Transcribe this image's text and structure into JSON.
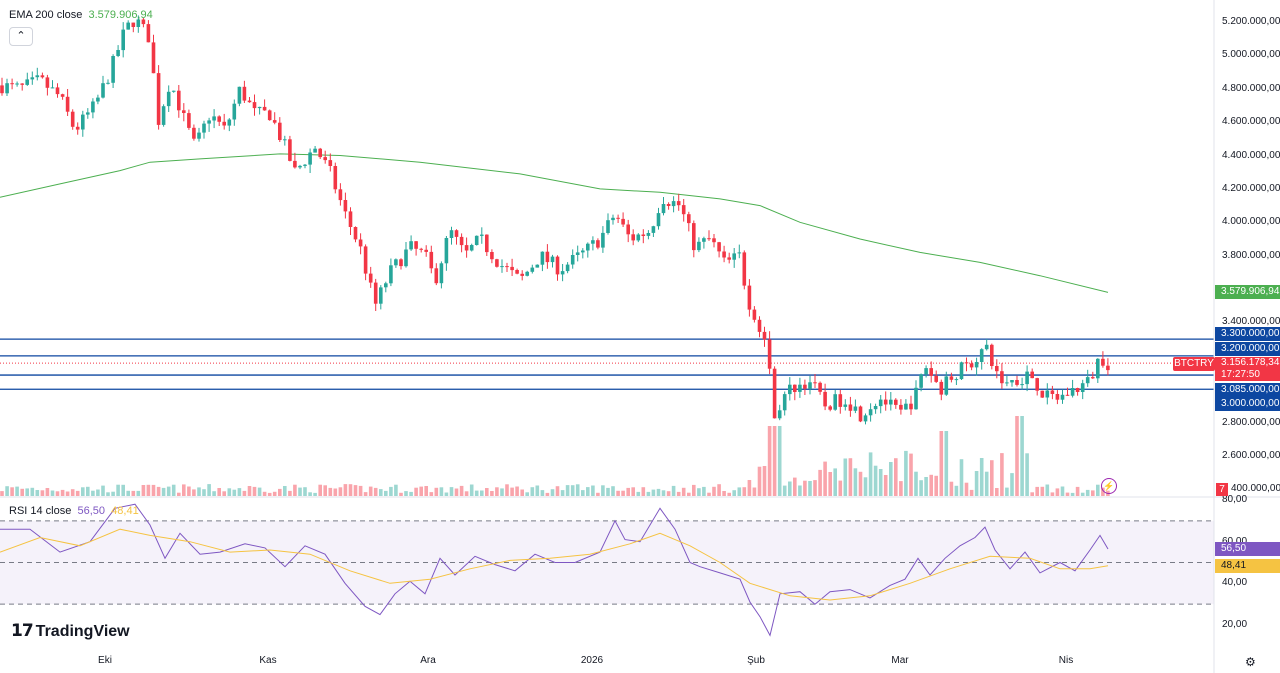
{
  "legend": {
    "ema_label": "EMA 200 close",
    "ema_value": "3.579.906,94",
    "rsi_label": "RSI 14 close",
    "rsi_value": "56,50",
    "rsi_ma_value": "48,41"
  },
  "symbol": "BTCTRY",
  "price_axis": [
    "5.200.000,00",
    "5.000.000,00",
    "4.800.000,00",
    "4.600.000,00",
    "4.400.000,00",
    "4.200.000,00",
    "4.000.000,00",
    "3.800.000,00",
    "3.400.000,00",
    "2.800.000,00",
    "2.600.000,00"
  ],
  "price_tags": {
    "ema": "3.579.906,94",
    "level_3300": "3.300.000,00",
    "level_3200": "3.200.000,00",
    "last_price": "3.156.178,34",
    "countdown": "17:27:50",
    "level_3085": "3.085.000,00",
    "level_3000": "3.000.000,00",
    "vol_tag": "7",
    "vol_tag_rest": "400.000,00"
  },
  "rsi_axis": [
    "80,00",
    "60,00",
    "40,00",
    "20,00"
  ],
  "rsi_tags": {
    "rsi": "56,50",
    "rsi_ma": "48,41"
  },
  "time_axis": [
    "Eki",
    "Kas",
    "Ara",
    "2026",
    "Şub",
    "Mar",
    "Nis"
  ],
  "branding": {
    "name": "TradingView"
  },
  "colors": {
    "up": "#26a69a",
    "down": "#f23645",
    "ema": "#4caf50",
    "rsi": "#7e57c2",
    "rsi_ma": "#f5c342",
    "level": "#0d47a1"
  },
  "chart_data": {
    "type": "candlestick",
    "series_name": "BTCTRY",
    "ylim": [
      2400000,
      5300000
    ],
    "horizontal_levels": [
      3300000,
      3200000,
      3085000,
      3000000
    ],
    "last_price": 3156178.34,
    "ema200_last": 3579906.94,
    "ema200": [
      [
        0,
        4150000
      ],
      [
        60,
        4230000
      ],
      [
        120,
        4310000
      ],
      [
        150,
        4360000
      ],
      [
        200,
        4380000
      ],
      [
        280,
        4410000
      ],
      [
        340,
        4400000
      ],
      [
        420,
        4360000
      ],
      [
        520,
        4290000
      ],
      [
        600,
        4200000
      ],
      [
        660,
        4180000
      ],
      [
        720,
        4140000
      ],
      [
        760,
        4100000
      ],
      [
        800,
        4000000
      ],
      [
        860,
        3900000
      ],
      [
        920,
        3820000
      ],
      [
        980,
        3760000
      ],
      [
        1040,
        3680000
      ],
      [
        1108,
        3579906
      ]
    ],
    "closes_anchor": [
      [
        0,
        4820000
      ],
      [
        20,
        4800000
      ],
      [
        40,
        4850000
      ],
      [
        60,
        4750000
      ],
      [
        75,
        4550000
      ],
      [
        95,
        4700000
      ],
      [
        110,
        4900000
      ],
      [
        125,
        5150000
      ],
      [
        135,
        5220000
      ],
      [
        150,
        5100000
      ],
      [
        158,
        4600000
      ],
      [
        170,
        4850000
      ],
      [
        185,
        4600000
      ],
      [
        195,
        4450000
      ],
      [
        210,
        4650000
      ],
      [
        225,
        4550000
      ],
      [
        240,
        4800000
      ],
      [
        255,
        4650000
      ],
      [
        270,
        4650000
      ],
      [
        285,
        4450000
      ],
      [
        295,
        4300000
      ],
      [
        315,
        4450000
      ],
      [
        330,
        4300000
      ],
      [
        345,
        4050000
      ],
      [
        360,
        3850000
      ],
      [
        375,
        3500000
      ],
      [
        390,
        3700000
      ],
      [
        410,
        3850000
      ],
      [
        425,
        3800000
      ],
      [
        435,
        3650000
      ],
      [
        450,
        3950000
      ],
      [
        465,
        3800000
      ],
      [
        480,
        3900000
      ],
      [
        500,
        3750000
      ],
      [
        520,
        3650000
      ],
      [
        540,
        3800000
      ],
      [
        560,
        3720000
      ],
      [
        580,
        3800000
      ],
      [
        600,
        3900000
      ],
      [
        615,
        4050000
      ],
      [
        630,
        3900000
      ],
      [
        650,
        3950000
      ],
      [
        662,
        4150000
      ],
      [
        680,
        4100000
      ],
      [
        695,
        3850000
      ],
      [
        710,
        3900000
      ],
      [
        725,
        3750000
      ],
      [
        740,
        3800000
      ],
      [
        750,
        3450000
      ],
      [
        765,
        3300000
      ],
      [
        775,
        2850000
      ],
      [
        790,
        3000000
      ],
      [
        810,
        3050000
      ],
      [
        825,
        2900000
      ],
      [
        845,
        2950000
      ],
      [
        860,
        2850000
      ],
      [
        880,
        2950000
      ],
      [
        900,
        2850000
      ],
      [
        915,
        2950000
      ],
      [
        925,
        3150000
      ],
      [
        940,
        3000000
      ],
      [
        955,
        3100000
      ],
      [
        970,
        3150000
      ],
      [
        985,
        3250000
      ],
      [
        1000,
        3050000
      ],
      [
        1015,
        3050000
      ],
      [
        1030,
        3100000
      ],
      [
        1045,
        2950000
      ],
      [
        1060,
        2950000
      ],
      [
        1075,
        3000000
      ],
      [
        1090,
        3050000
      ],
      [
        1100,
        3200000
      ],
      [
        1108,
        3156178
      ]
    ],
    "rsi": [
      [
        0,
        66
      ],
      [
        30,
        66
      ],
      [
        60,
        55
      ],
      [
        90,
        60
      ],
      [
        115,
        76
      ],
      [
        135,
        78
      ],
      [
        150,
        68
      ],
      [
        165,
        52
      ],
      [
        180,
        64
      ],
      [
        200,
        54
      ],
      [
        220,
        55
      ],
      [
        245,
        59
      ],
      [
        265,
        57
      ],
      [
        285,
        48
      ],
      [
        305,
        58
      ],
      [
        325,
        54
      ],
      [
        345,
        40
      ],
      [
        365,
        29
      ],
      [
        380,
        25
      ],
      [
        395,
        35
      ],
      [
        410,
        41
      ],
      [
        425,
        35
      ],
      [
        440,
        52
      ],
      [
        455,
        44
      ],
      [
        475,
        53
      ],
      [
        495,
        49
      ],
      [
        515,
        46
      ],
      [
        535,
        54
      ],
      [
        555,
        50
      ],
      [
        575,
        50
      ],
      [
        600,
        55
      ],
      [
        615,
        70
      ],
      [
        625,
        61
      ],
      [
        640,
        60
      ],
      [
        660,
        76
      ],
      [
        675,
        66
      ],
      [
        690,
        50
      ],
      [
        700,
        48
      ],
      [
        720,
        45
      ],
      [
        740,
        42
      ],
      [
        750,
        31
      ],
      [
        760,
        24
      ],
      [
        770,
        15
      ],
      [
        780,
        35
      ],
      [
        800,
        36
      ],
      [
        815,
        30
      ],
      [
        830,
        36
      ],
      [
        850,
        37
      ],
      [
        870,
        33
      ],
      [
        890,
        39
      ],
      [
        905,
        42
      ],
      [
        918,
        52
      ],
      [
        930,
        44
      ],
      [
        945,
        52
      ],
      [
        960,
        58
      ],
      [
        975,
        62
      ],
      [
        985,
        67
      ],
      [
        995,
        56
      ],
      [
        1010,
        47
      ],
      [
        1025,
        55
      ],
      [
        1040,
        45
      ],
      [
        1060,
        50
      ],
      [
        1075,
        46
      ],
      [
        1090,
        56
      ],
      [
        1100,
        63
      ],
      [
        1108,
        56.5
      ]
    ],
    "rsi_ma": [
      [
        0,
        55
      ],
      [
        40,
        62
      ],
      [
        80,
        58
      ],
      [
        120,
        66
      ],
      [
        150,
        63
      ],
      [
        190,
        60
      ],
      [
        230,
        55
      ],
      [
        270,
        56
      ],
      [
        310,
        54
      ],
      [
        350,
        46
      ],
      [
        390,
        40
      ],
      [
        430,
        42
      ],
      [
        470,
        47
      ],
      [
        510,
        51
      ],
      [
        550,
        52
      ],
      [
        590,
        54
      ],
      [
        630,
        59
      ],
      [
        660,
        64
      ],
      [
        690,
        58
      ],
      [
        720,
        50
      ],
      [
        750,
        40
      ],
      [
        790,
        34
      ],
      [
        830,
        32
      ],
      [
        870,
        34
      ],
      [
        910,
        40
      ],
      [
        950,
        47
      ],
      [
        990,
        53
      ],
      [
        1030,
        52
      ],
      [
        1060,
        47
      ],
      [
        1090,
        47
      ],
      [
        1108,
        48.41
      ]
    ],
    "rsi_levels": [
      70,
      50,
      30
    ],
    "rsi_ylim": [
      13,
      83
    ],
    "x_ticks": [
      [
        105,
        "Eki"
      ],
      [
        268,
        "Kas"
      ],
      [
        428,
        "Ara"
      ],
      [
        592,
        "2026"
      ],
      [
        756,
        "Şub"
      ],
      [
        900,
        "Mar"
      ],
      [
        1066,
        "Nis"
      ]
    ]
  }
}
